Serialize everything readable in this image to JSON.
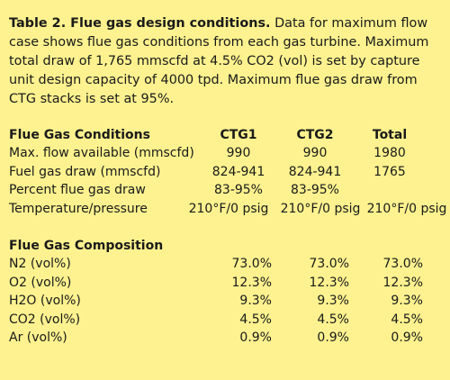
{
  "caption": {
    "title": "Table 2. Flue gas design conditions.",
    "text": " Data for maximum flow case shows flue gas conditions from each gas turbine. Maximum total draw of 1,765 mmscfd at 4.5% CO2 (vol) is set by capture unit design capacity of 4000 tpd. Maximum flue gas draw from CTG stacks is set at 95%."
  },
  "conditions": {
    "header": {
      "label": "Flue Gas Conditions",
      "col1": "CTG1",
      "col2": "CTG2",
      "col3": "Total"
    },
    "rows": [
      {
        "label": "Max. flow available (mmscfd)",
        "col1": "990",
        "col2": "990",
        "col3": "1980"
      },
      {
        "label": "Fuel gas draw (mmscfd)",
        "col1": "824-941",
        "col2": "824-941",
        "col3": "1765"
      },
      {
        "label": "Percent flue gas draw",
        "col1": "83-95%",
        "col2": "83-95%",
        "col3": ""
      },
      {
        "label": "Temperature/pressure",
        "col1": "210°F/0 psig",
        "col2": "210°F/0 psig",
        "col3": "210°F/0 psig"
      }
    ]
  },
  "composition": {
    "title": "Flue Gas Composition",
    "rows": [
      {
        "label": "N2 (vol%)",
        "col1": "73.0%",
        "col2": "73.0%",
        "col3": "73.0%"
      },
      {
        "label": "O2 (vol%)",
        "col1": "12.3%",
        "col2": "12.3%",
        "col3": "12.3%"
      },
      {
        "label": "H2O (vol%)",
        "col1": "9.3%",
        "col2": "9.3%",
        "col3": "9.3%"
      },
      {
        "label": "CO2 (vol%)",
        "col1": "4.5%",
        "col2": "4.5%",
        "col3": "4.5%"
      },
      {
        "label": "Ar (vol%)",
        "col1": "0.9%",
        "col2": "0.9%",
        "col3": "0.9%"
      }
    ]
  }
}
